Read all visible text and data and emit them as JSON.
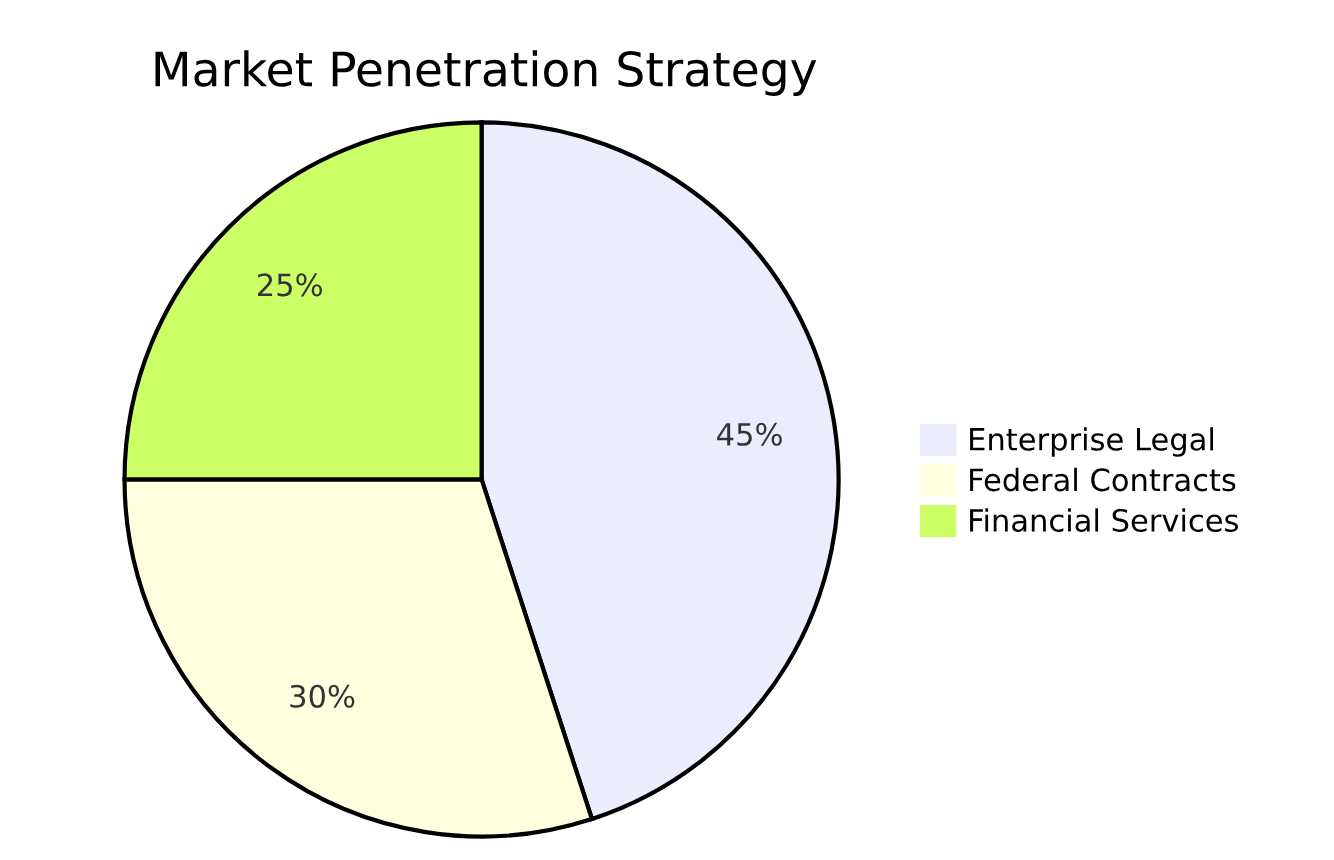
{
  "chart_data": {
    "type": "pie",
    "title": "Market Penetration Strategy",
    "categories": [
      "Enterprise Legal",
      "Federal Contracts",
      "Financial Services"
    ],
    "values": [
      45,
      30,
      25
    ],
    "colors": [
      "#ececff",
      "#ffffe0",
      "#ccff66"
    ],
    "value_labels": [
      "45%",
      "30%",
      "25%"
    ],
    "legend": "right"
  }
}
